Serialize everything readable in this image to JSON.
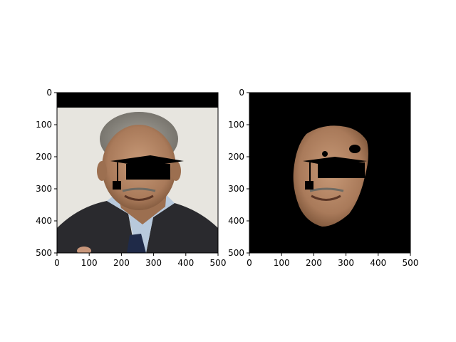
{
  "figure": {
    "panels": [
      {
        "id": "left",
        "title": "",
        "content": "original-photo-with-mask",
        "xlim": [
          0,
          500
        ],
        "ylim": [
          500,
          0
        ],
        "xticks": [
          0,
          100,
          200,
          300,
          400,
          500
        ],
        "yticks": [
          0,
          100,
          200,
          300,
          400,
          500
        ]
      },
      {
        "id": "right",
        "title": "",
        "content": "segmented-face-on-black",
        "xlim": [
          0,
          500
        ],
        "ylim": [
          500,
          0
        ],
        "xticks": [
          0,
          100,
          200,
          300,
          400,
          500
        ],
        "yticks": [
          0,
          100,
          200,
          300,
          400,
          500
        ]
      }
    ]
  },
  "colors": {
    "background": "#ffffff",
    "image_black": "#000000",
    "photo_wall": "#e7e5df",
    "suit": "#2a2a2e",
    "shirt": "#b8c9dc",
    "skin": "#b78a69",
    "hair": "#8d8b84"
  }
}
